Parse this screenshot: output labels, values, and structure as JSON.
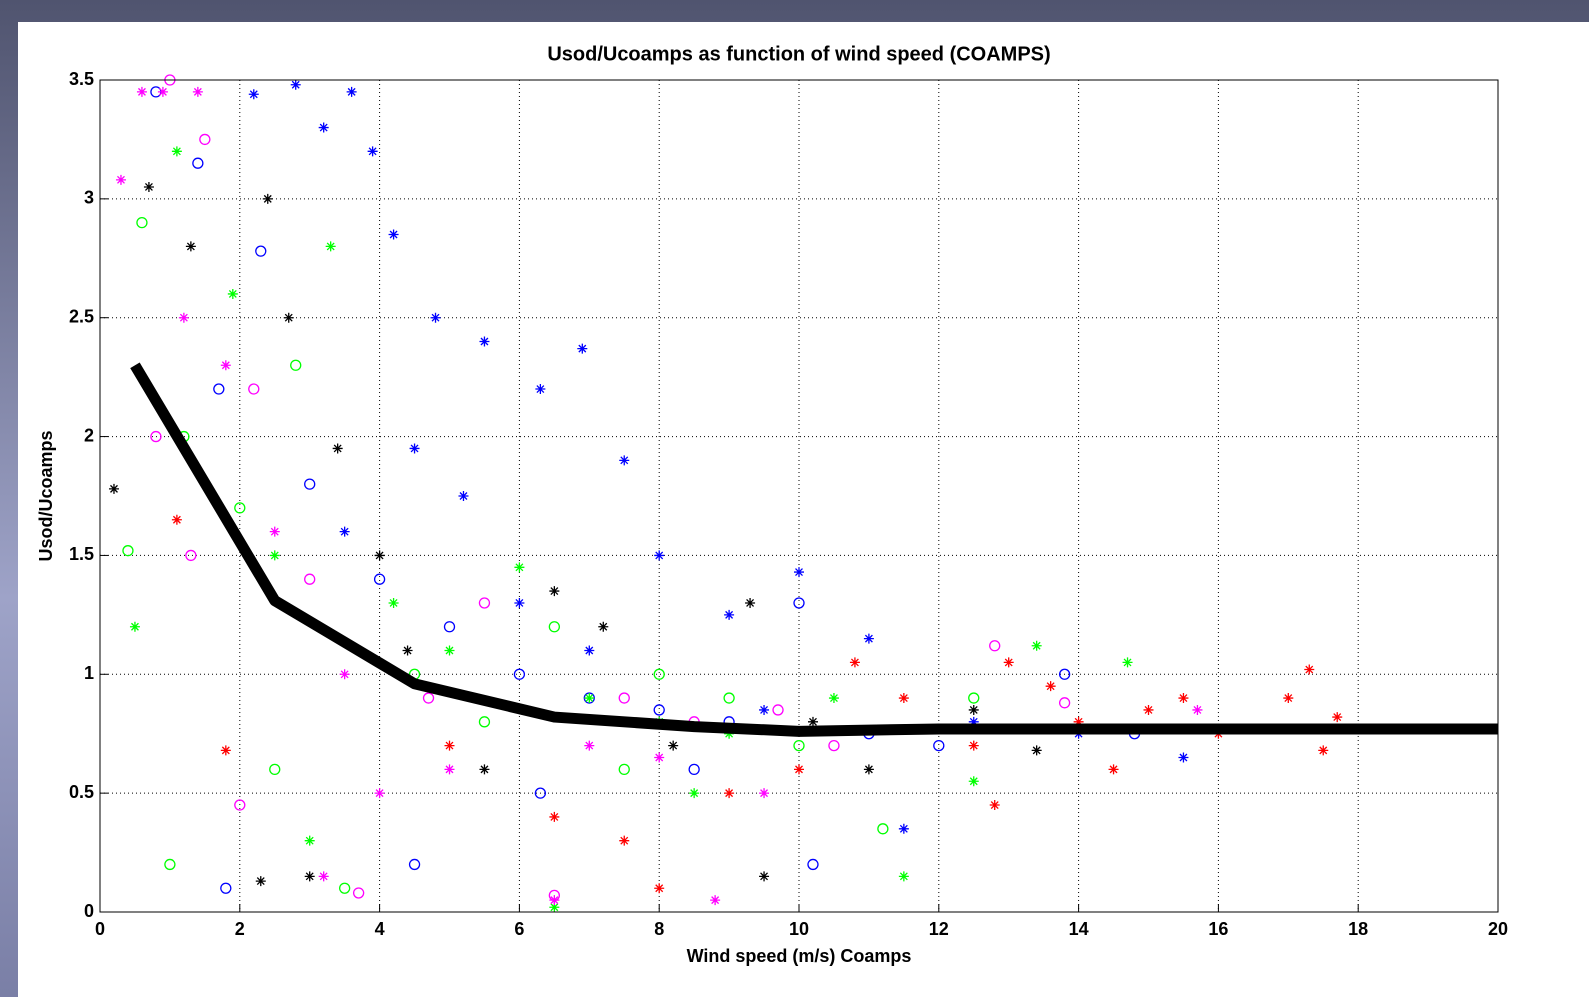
{
  "chart_data": {
    "type": "scatter",
    "title": "Usod/Ucoamps as function of wind speed (COAMPS)",
    "x_label": "Wind speed (m/s) Coamps",
    "y_label": "Usod/Ucoamps",
    "xlim": [
      0,
      20
    ],
    "xticks": [
      0,
      2,
      4,
      6,
      8,
      10,
      12,
      14,
      16,
      18,
      20
    ],
    "ylim": [
      0,
      3.5
    ],
    "yticks": [
      0,
      0.5,
      1,
      1.5,
      2,
      2.5,
      3,
      3.5
    ],
    "grid": true,
    "series": [
      {
        "color": "#0000ff",
        "marker": "star",
        "x": [
          2.2,
          2.8,
          3.2,
          3.6,
          3.9,
          4.2,
          4.8,
          5.5,
          6.3,
          6.9,
          7.5,
          8,
          4.5,
          5.2,
          9,
          10,
          11,
          12.5,
          14,
          15.5,
          7,
          9.5,
          11.5,
          3.5,
          6
        ],
        "values": [
          3.44,
          3.48,
          3.3,
          3.45,
          3.2,
          2.85,
          2.5,
          2.4,
          2.2,
          2.37,
          1.9,
          1.5,
          1.95,
          1.75,
          1.25,
          1.43,
          1.15,
          0.8,
          0.75,
          0.65,
          1.1,
          0.85,
          0.35,
          1.6,
          1.3
        ]
      },
      {
        "color": "#0000ff",
        "marker": "circle",
        "x": [
          0.8,
          1.4,
          2.3,
          1.7,
          3,
          4,
          5,
          6,
          7,
          8,
          9,
          10,
          11,
          12,
          13.8,
          14.8,
          1.8,
          4.5,
          10.2,
          6.3,
          8.5
        ],
        "values": [
          3.45,
          3.15,
          2.78,
          2.2,
          1.8,
          1.4,
          1.2,
          1.0,
          0.9,
          0.85,
          0.8,
          1.3,
          0.75,
          0.7,
          1.0,
          0.75,
          0.1,
          0.2,
          0.2,
          0.5,
          0.6
        ]
      },
      {
        "color": "#00ff00",
        "marker": "star",
        "x": [
          1.1,
          1.9,
          0.5,
          2.5,
          3.3,
          4.2,
          5,
          6,
          7,
          8,
          9,
          10.5,
          11.5,
          12.5,
          13.4,
          14.7,
          6.5,
          3,
          8.5
        ],
        "values": [
          3.2,
          2.6,
          1.2,
          1.5,
          2.8,
          1.3,
          1.1,
          1.45,
          0.9,
          0.8,
          0.75,
          0.9,
          0.15,
          0.55,
          1.12,
          1.05,
          0.02,
          0.3,
          0.5
        ]
      },
      {
        "color": "#00ff00",
        "marker": "circle",
        "x": [
          0.4,
          0.6,
          1.2,
          2.0,
          2.8,
          3.5,
          4.5,
          5.5,
          6.5,
          7.5,
          9,
          10,
          11.2,
          12.5,
          1.0,
          2.5,
          8
        ],
        "values": [
          1.52,
          2.9,
          2.0,
          1.7,
          2.3,
          0.1,
          1.0,
          0.8,
          1.2,
          0.6,
          0.9,
          0.7,
          0.35,
          0.9,
          0.2,
          0.6,
          1.0
        ]
      },
      {
        "color": "#000000",
        "marker": "star",
        "x": [
          0.2,
          0.7,
          1.3,
          2.4,
          2.7,
          3.4,
          4,
          4.4,
          5.5,
          6.5,
          7.2,
          8.2,
          9.3,
          10.2,
          11,
          12.5,
          13.4,
          2.3,
          3.0,
          9.5
        ],
        "values": [
          1.78,
          3.05,
          2.8,
          3.0,
          2.5,
          1.95,
          1.5,
          1.1,
          0.6,
          1.35,
          1.2,
          0.7,
          1.3,
          0.8,
          0.6,
          0.85,
          0.68,
          0.13,
          0.15,
          0.15
        ]
      },
      {
        "color": "#ff0000",
        "marker": "star",
        "x": [
          1.1,
          1.8,
          5,
          6.5,
          7.5,
          8,
          9,
          10,
          10.8,
          11.5,
          12.5,
          13,
          13.6,
          14,
          14.5,
          15,
          15.5,
          16,
          17,
          17.3,
          17.5,
          17.7,
          12.8
        ],
        "values": [
          1.65,
          0.68,
          0.7,
          0.4,
          0.3,
          0.1,
          0.5,
          0.6,
          1.05,
          0.9,
          0.7,
          1.05,
          0.95,
          0.8,
          0.6,
          0.85,
          0.9,
          0.75,
          0.9,
          1.02,
          0.68,
          0.82,
          0.45
        ]
      },
      {
        "color": "#ff00ff",
        "marker": "star",
        "x": [
          0.3,
          0.6,
          0.9,
          1.4,
          1.2,
          1.8,
          2.5,
          3.5,
          4,
          5,
          6.5,
          7,
          8,
          8.8,
          9.5,
          3.2,
          15.7
        ],
        "values": [
          3.08,
          3.45,
          3.45,
          3.45,
          2.5,
          2.3,
          1.6,
          1.0,
          0.5,
          0.6,
          0.05,
          0.7,
          0.65,
          0.05,
          0.5,
          0.15,
          0.85
        ]
      },
      {
        "color": "#ff00ff",
        "marker": "circle",
        "x": [
          1.0,
          1.5,
          0.8,
          1.3,
          2.2,
          3,
          3.7,
          4.7,
          5.5,
          6.5,
          7.5,
          8.5,
          9.7,
          10.5,
          12.8,
          13.8,
          2
        ],
        "values": [
          3.5,
          3.25,
          2.0,
          1.5,
          2.2,
          1.4,
          0.08,
          0.9,
          1.3,
          0.07,
          0.9,
          0.8,
          0.85,
          0.7,
          1.12,
          0.88,
          0.45
        ]
      }
    ],
    "fit_line": {
      "color": "#000000",
      "x": [
        0.5,
        2.5,
        4.5,
        6.5,
        8.5,
        10,
        12,
        14,
        16,
        18,
        20
      ],
      "values": [
        2.3,
        1.31,
        0.96,
        0.82,
        0.78,
        0.76,
        0.77,
        0.77,
        0.77,
        0.77,
        0.77
      ]
    }
  }
}
